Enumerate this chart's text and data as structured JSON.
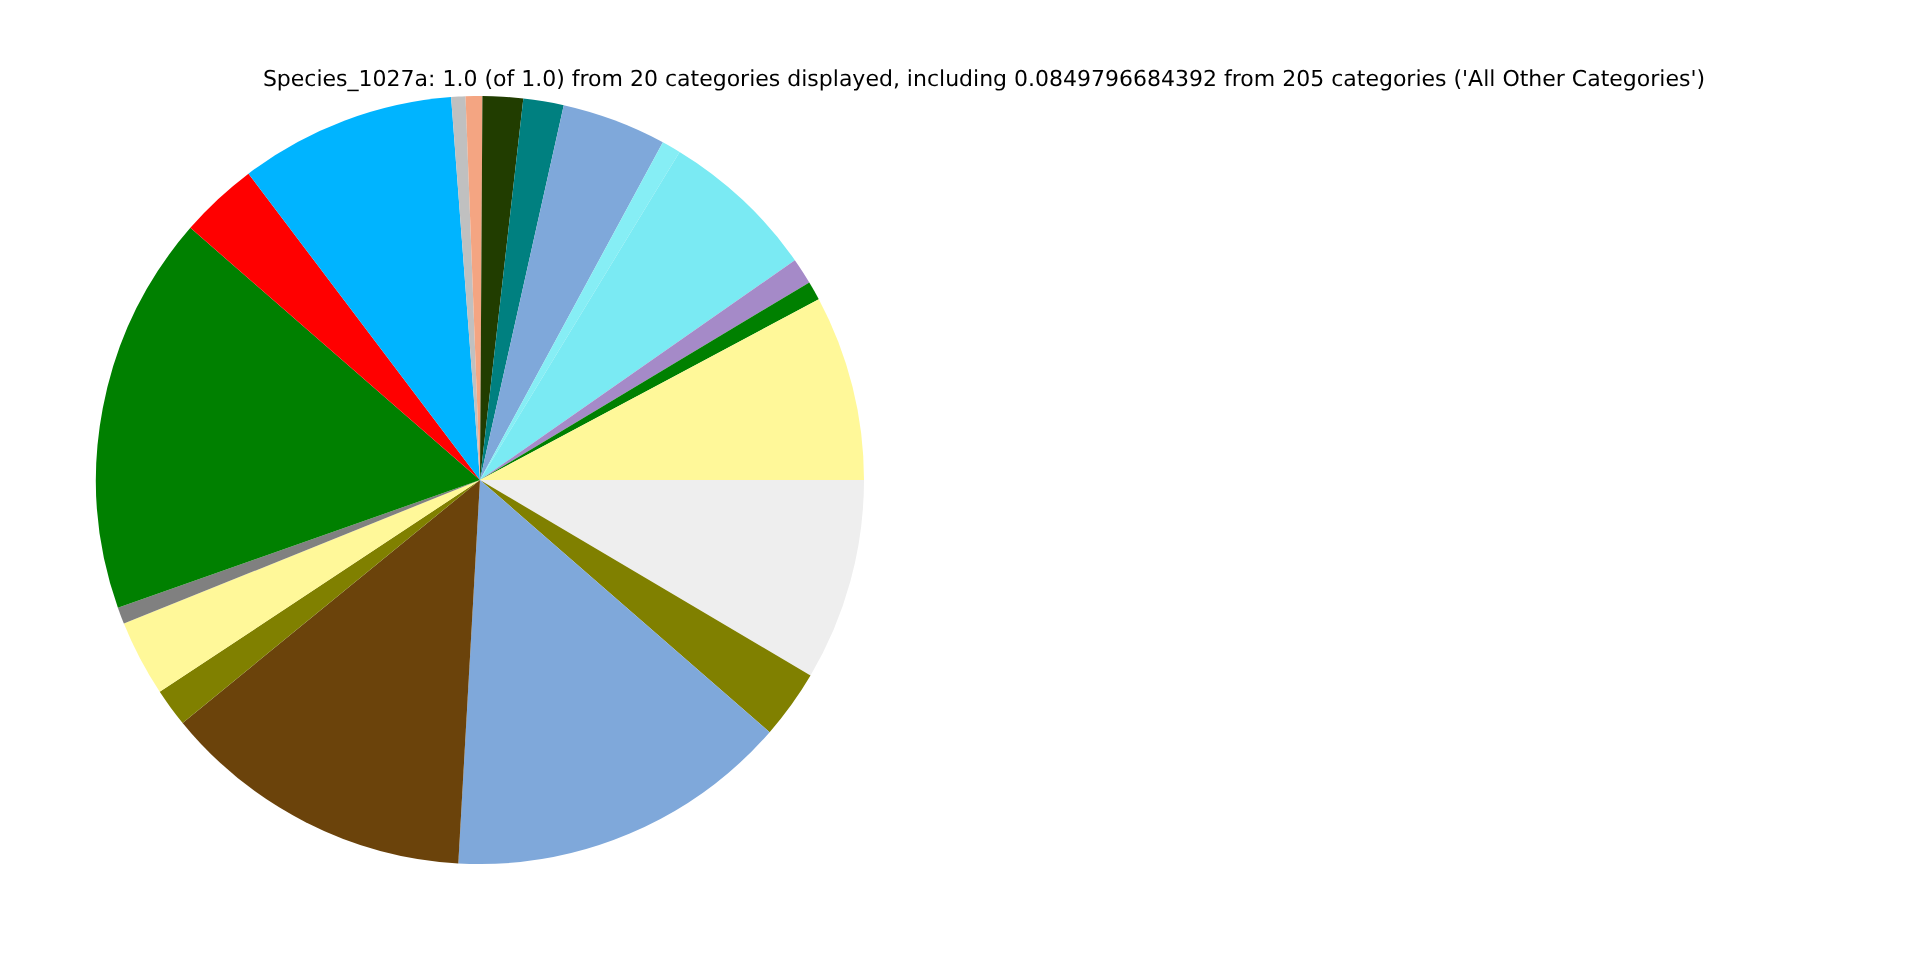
{
  "chart_data": {
    "type": "pie",
    "title": "Species_1027a: 1.0 (of 1.0) from 20 categories displayed, including 0.0849796684392 from 205 categories ('All Other Categories')",
    "categories": [
      null,
      null,
      null,
      null,
      null,
      null,
      null,
      null,
      null,
      null,
      null,
      null,
      null,
      null,
      null,
      null,
      null,
      null,
      null,
      null
    ],
    "values": [
      7.8,
      0.8,
      1.1,
      6.6,
      0.8,
      4.4,
      1.7,
      1.7,
      0.7,
      0.6,
      9.1,
      3.3,
      16.8,
      0.7,
      3.2,
      1.6,
      13.2,
      14.5,
      2.9,
      8.5
    ],
    "colors": [
      "#fff899",
      "#008000",
      "#a58ac8",
      "#7aeaf3",
      "#86eef5",
      "#7fa8da",
      "#008080",
      "#213d00",
      "#f4a582",
      "#c0c0c0",
      "#00b4ff",
      "#ff0000",
      "#008000",
      "#808080",
      "#fff899",
      "#808000",
      "#6b430b",
      "#7fa8da",
      "#808000",
      "#eeeeee"
    ],
    "legend": false
  }
}
